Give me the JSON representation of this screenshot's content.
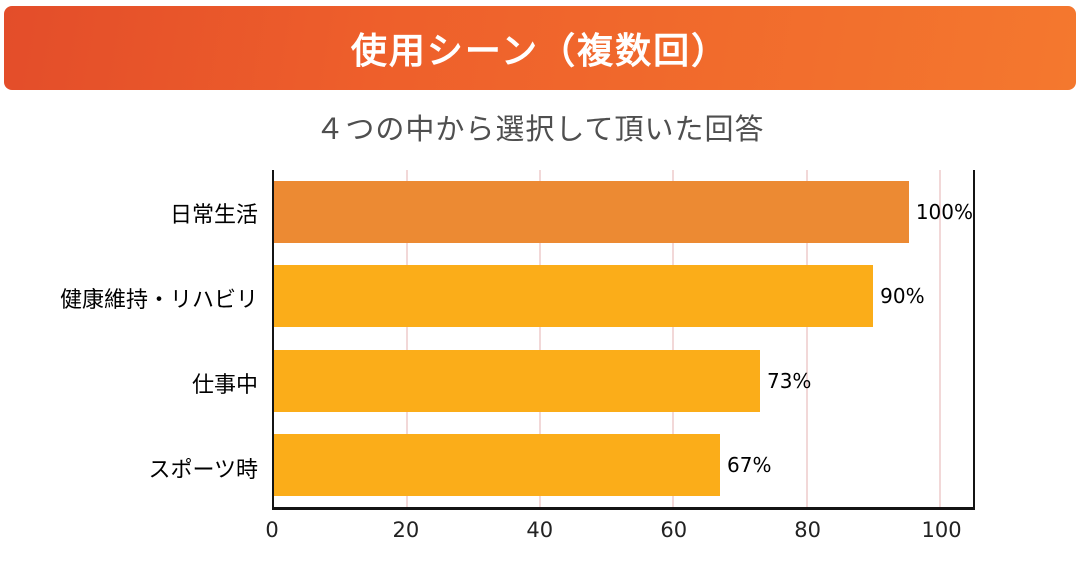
{
  "header": {
    "title": "使用シーン（複数回）",
    "gradient_from": "#e34d2a",
    "gradient_to": "#f4782e"
  },
  "subtitle": "４つの中から選択して頂いた回答",
  "chart_data": {
    "type": "bar",
    "orientation": "horizontal",
    "title": "使用シーン（複数回）",
    "subtitle": "４つの中から選択して頂いた回答",
    "categories": [
      "日常生活",
      "健康維持・リハビリ",
      "仕事中",
      "スポーツ時"
    ],
    "values": [
      100,
      90,
      73,
      67
    ],
    "value_labels": [
      "100%",
      "90%",
      "73%",
      "67%"
    ],
    "bar_colors": [
      "#ec8a33",
      "#fbad19",
      "#fbad19",
      "#fbad19"
    ],
    "xticks": [
      0,
      20,
      40,
      60,
      80,
      100
    ],
    "xlim": [
      0,
      105
    ],
    "grid": true,
    "grid_color": "#f2d8d8",
    "legend": "none"
  }
}
